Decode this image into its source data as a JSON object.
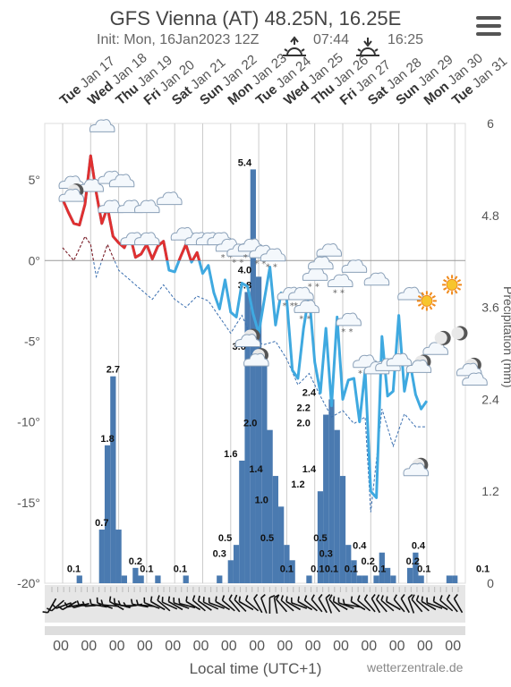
{
  "header": {
    "title": "GFS Vienna (AT) 48.25N, 16.25E",
    "subtitle": "Init: Mon, 16Jan2023 12Z",
    "sunrise": "07:44",
    "sunset": "16:25",
    "menu_icon": "hamburger-menu-icon"
  },
  "footer": {
    "xlabel": "Local time (UTC+1)",
    "credit": "wetterzentrale.de"
  },
  "right_axis_label": "Precipitation (mm)",
  "colors": {
    "temp_above": "#e03030",
    "temp_below": "#3fa9e0",
    "dewpoint_above": "#8b1a1a",
    "dewpoint_below": "#3a6fb0",
    "precip": "#4a7ab0",
    "grid": "#cccccc",
    "zero_line": "#999999"
  },
  "chart_data": {
    "type": "bar",
    "day_labels": [
      {
        "day": "Tue",
        "date": "Jan 17"
      },
      {
        "day": "Wed",
        "date": "Jan 18"
      },
      {
        "day": "Thu",
        "date": "Jan 19"
      },
      {
        "day": "Fri",
        "date": "Jan 20"
      },
      {
        "day": "Sat",
        "date": "Jan 21"
      },
      {
        "day": "Sun",
        "date": "Jan 22"
      },
      {
        "day": "Mon",
        "date": "Jan 23"
      },
      {
        "day": "Tue",
        "date": "Jan 24"
      },
      {
        "day": "Wed",
        "date": "Jan 25"
      },
      {
        "day": "Thu",
        "date": "Jan 26"
      },
      {
        "day": "Fri",
        "date": "Jan 27"
      },
      {
        "day": "Sat",
        "date": "Jan 28"
      },
      {
        "day": "Sun",
        "date": "Jan 29"
      },
      {
        "day": "Mon",
        "date": "Jan 30"
      },
      {
        "day": "Tue",
        "date": "Jan 31"
      }
    ],
    "hour_labels": [
      "00",
      "00",
      "00",
      "00",
      "00",
      "00",
      "00",
      "00",
      "00",
      "00",
      "00",
      "00",
      "00",
      "00",
      "00"
    ],
    "temp_axis": {
      "ticks": [
        "5°",
        "0°",
        "-5°",
        "-10°",
        "-15°",
        "-20°"
      ],
      "values": [
        5,
        0,
        -5,
        -10,
        -15,
        -20
      ],
      "ylim": [
        -20,
        8.5
      ]
    },
    "precip_axis": {
      "ticks": [
        "6",
        "4.8",
        "3.6",
        "2.4",
        "1.2",
        "0"
      ],
      "values": [
        6,
        4.8,
        3.6,
        2.4,
        1.2,
        0
      ],
      "ylim": [
        0,
        6
      ]
    },
    "temperature": [
      [
        0,
        3.8
      ],
      [
        0.2,
        3.0
      ],
      [
        0.4,
        2.3
      ],
      [
        0.6,
        2.2
      ],
      [
        0.8,
        3.5
      ],
      [
        1.0,
        6.5
      ],
      [
        1.2,
        4.2
      ],
      [
        1.4,
        2.3
      ],
      [
        1.6,
        3.3
      ],
      [
        1.8,
        1.5
      ],
      [
        2.0,
        1.1
      ],
      [
        2.2,
        0.8
      ],
      [
        2.4,
        1.6
      ],
      [
        2.6,
        0.2
      ],
      [
        2.8,
        0.4
      ],
      [
        3.0,
        1.0
      ],
      [
        3.2,
        0.1
      ],
      [
        3.4,
        0.9
      ],
      [
        3.6,
        1.2
      ],
      [
        3.8,
        -0.6
      ],
      [
        4.0,
        -0.7
      ],
      [
        4.2,
        0.2
      ],
      [
        4.4,
        1.0
      ],
      [
        4.6,
        -0.1
      ],
      [
        4.8,
        0.5
      ],
      [
        5.0,
        -0.8
      ],
      [
        5.2,
        -0.3
      ],
      [
        5.4,
        -2.0
      ],
      [
        5.6,
        -3.0
      ],
      [
        5.8,
        -1.2
      ],
      [
        6.0,
        -3.2
      ],
      [
        6.2,
        -3.5
      ],
      [
        6.4,
        -1.4
      ],
      [
        6.6,
        -1.6
      ],
      [
        6.8,
        -3.3
      ],
      [
        7.0,
        -4.5
      ],
      [
        7.2,
        -2.4
      ],
      [
        7.4,
        -0.4
      ],
      [
        7.6,
        -4.0
      ],
      [
        7.8,
        -2.0
      ],
      [
        8.0,
        -2.4
      ],
      [
        8.2,
        -6.8
      ],
      [
        8.4,
        -7.3
      ],
      [
        8.6,
        -4.2
      ],
      [
        8.8,
        -2.1
      ],
      [
        9.0,
        -6.3
      ],
      [
        9.2,
        -8.2
      ],
      [
        9.4,
        -4.2
      ],
      [
        9.6,
        -9.0
      ],
      [
        9.8,
        -3.5
      ],
      [
        10.0,
        -8.6
      ],
      [
        10.2,
        -7.4
      ],
      [
        10.4,
        -7.3
      ],
      [
        10.6,
        -10.0
      ],
      [
        10.8,
        -6.8
      ],
      [
        11.0,
        -14.3
      ],
      [
        11.2,
        -14.7
      ],
      [
        11.4,
        -4.7
      ],
      [
        11.6,
        -8.4
      ],
      [
        11.8,
        -8.1
      ],
      [
        12.0,
        -3.4
      ],
      [
        12.2,
        -8.1
      ],
      [
        12.4,
        -6.3
      ],
      [
        12.6,
        -8.3
      ],
      [
        12.8,
        -9.2
      ],
      [
        13.0,
        -8.7
      ]
    ],
    "dewpoint": [
      [
        0,
        0.8
      ],
      [
        0.4,
        0.0
      ],
      [
        0.8,
        1.5
      ],
      [
        1.0,
        1.0
      ],
      [
        1.2,
        -1.0
      ],
      [
        1.6,
        1.0
      ],
      [
        2.0,
        -0.6
      ],
      [
        2.4,
        -1.2
      ],
      [
        2.8,
        -1.8
      ],
      [
        3.2,
        -2.4
      ],
      [
        3.6,
        -1.5
      ],
      [
        4.0,
        -2.4
      ],
      [
        4.4,
        -2.9
      ],
      [
        4.8,
        -2.2
      ],
      [
        5.2,
        -2.5
      ],
      [
        5.6,
        -3.5
      ],
      [
        6.0,
        -4.5
      ],
      [
        6.4,
        -3.4
      ],
      [
        6.8,
        -5.0
      ],
      [
        7.2,
        -5.2
      ],
      [
        7.6,
        -5.0
      ],
      [
        8.0,
        -6.1
      ],
      [
        8.4,
        -7.7
      ],
      [
        8.8,
        -7.0
      ],
      [
        9.2,
        -8.4
      ],
      [
        9.6,
        -9.7
      ],
      [
        10.0,
        -9.3
      ],
      [
        10.4,
        -10.1
      ],
      [
        10.8,
        -9.7
      ],
      [
        11.0,
        -15.6
      ],
      [
        11.4,
        -9.2
      ],
      [
        11.8,
        -11.5
      ],
      [
        12.2,
        -9.5
      ],
      [
        12.6,
        -10.3
      ],
      [
        13.0,
        -10.3
      ]
    ],
    "precipitation": [
      [
        0,
        0
      ],
      [
        0.2,
        0
      ],
      [
        0.4,
        0
      ],
      [
        0.6,
        0.1
      ],
      [
        0.8,
        0
      ],
      [
        1.0,
        0
      ],
      [
        1.2,
        0
      ],
      [
        1.4,
        0.7
      ],
      [
        1.6,
        1.8
      ],
      [
        1.8,
        2.7
      ],
      [
        2.0,
        0.7
      ],
      [
        2.2,
        0.1
      ],
      [
        2.4,
        0
      ],
      [
        2.6,
        0.2
      ],
      [
        2.8,
        0.1
      ],
      [
        3.0,
        0
      ],
      [
        3.2,
        0
      ],
      [
        3.4,
        0.1
      ],
      [
        3.6,
        0
      ],
      [
        3.8,
        0
      ],
      [
        4.0,
        0
      ],
      [
        4.2,
        0
      ],
      [
        4.4,
        0.1
      ],
      [
        4.6,
        0
      ],
      [
        4.8,
        0
      ],
      [
        5.0,
        0
      ],
      [
        5.2,
        0
      ],
      [
        5.4,
        0
      ],
      [
        5.6,
        0.1
      ],
      [
        5.8,
        0
      ],
      [
        6.0,
        0.3
      ],
      [
        6.2,
        0.5
      ],
      [
        6.4,
        1.6
      ],
      [
        6.6,
        3.8
      ],
      [
        6.8,
        5.4
      ],
      [
        7.0,
        4.0
      ],
      [
        7.2,
        3.0
      ],
      [
        7.4,
        2.0
      ],
      [
        7.6,
        1.4
      ],
      [
        7.8,
        1.0
      ],
      [
        8.0,
        0.5
      ],
      [
        8.2,
        0.3
      ],
      [
        8.4,
        0
      ],
      [
        8.6,
        0
      ],
      [
        8.8,
        0.1
      ],
      [
        9.0,
        0
      ],
      [
        9.2,
        1.2
      ],
      [
        9.4,
        2.2
      ],
      [
        9.6,
        2.4
      ],
      [
        9.8,
        2.0
      ],
      [
        10.0,
        1.4
      ],
      [
        10.2,
        0.5
      ],
      [
        10.4,
        0.3
      ],
      [
        10.6,
        0.1
      ],
      [
        10.8,
        0.1
      ],
      [
        11.0,
        0
      ],
      [
        11.2,
        0.1
      ],
      [
        11.4,
        0.4
      ],
      [
        11.6,
        0.2
      ],
      [
        11.8,
        0.1
      ],
      [
        12.0,
        0
      ],
      [
        12.2,
        0
      ],
      [
        12.4,
        0.2
      ],
      [
        12.6,
        0.4
      ],
      [
        12.8,
        0.1
      ],
      [
        13.0,
        0
      ],
      [
        13.2,
        0
      ],
      [
        13.4,
        0
      ],
      [
        13.6,
        0
      ],
      [
        13.8,
        0.1
      ],
      [
        14.0,
        0.1
      ]
    ],
    "precip_labels": [
      {
        "x": 0.4,
        "v": "0.1"
      },
      {
        "x": 1.4,
        "v": "0.7"
      },
      {
        "x": 1.6,
        "v": "1.8"
      },
      {
        "x": 1.8,
        "v": "2.7"
      },
      {
        "x": 2.6,
        "v": "0.2"
      },
      {
        "x": 3.0,
        "v": "0.1"
      },
      {
        "x": 4.2,
        "v": "0.1"
      },
      {
        "x": 5.6,
        "v": "0.3"
      },
      {
        "x": 5.8,
        "v": "0.5"
      },
      {
        "x": 6.0,
        "v": "1.6"
      },
      {
        "x": 6.3,
        "v": "3.0"
      },
      {
        "x": 6.5,
        "v": "3.8"
      },
      {
        "x": 6.5,
        "v": "4.0"
      },
      {
        "x": 6.5,
        "v": "5.4"
      },
      {
        "x": 6.7,
        "v": "2.0"
      },
      {
        "x": 6.9,
        "v": "1.4"
      },
      {
        "x": 7.1,
        "v": "1.0"
      },
      {
        "x": 7.3,
        "v": "0.5"
      },
      {
        "x": 8.0,
        "v": "0.1"
      },
      {
        "x": 8.4,
        "v": "1.2"
      },
      {
        "x": 8.6,
        "v": "2.2"
      },
      {
        "x": 8.6,
        "v": "2.0"
      },
      {
        "x": 8.8,
        "v": "2.4"
      },
      {
        "x": 8.8,
        "v": "1.4"
      },
      {
        "x": 9.2,
        "v": "0.5"
      },
      {
        "x": 9.4,
        "v": "0.3"
      },
      {
        "x": 9.1,
        "v": "0.1"
      },
      {
        "x": 9.6,
        "v": "0.1"
      },
      {
        "x": 10.3,
        "v": "0.1"
      },
      {
        "x": 10.6,
        "v": "0.4"
      },
      {
        "x": 10.9,
        "v": "0.2"
      },
      {
        "x": 11.3,
        "v": "0.1"
      },
      {
        "x": 12.5,
        "v": "0.2"
      },
      {
        "x": 12.7,
        "v": "0.4"
      },
      {
        "x": 12.9,
        "v": "0.1"
      },
      {
        "x": 15.0,
        "v": "0.1"
      }
    ],
    "weather_icons": [
      {
        "x": 0.3,
        "t": 4.7,
        "icon": "cloud-icon"
      },
      {
        "x": 1.0,
        "t": 4.5,
        "icon": "cloud-icon"
      },
      {
        "x": 0.3,
        "t": 4.0,
        "icon": "moon-cloud-icon"
      },
      {
        "x": 1.4,
        "t": 8.2,
        "icon": "cloud-icon"
      },
      {
        "x": 1.7,
        "t": 5.0,
        "icon": "cloud-icon"
      },
      {
        "x": 2.1,
        "t": 4.8,
        "icon": "cloud-icon"
      },
      {
        "x": 1.7,
        "t": 3.2,
        "icon": "cloud-icon"
      },
      {
        "x": 2.4,
        "t": 3.2,
        "icon": "cloud-icon"
      },
      {
        "x": 3.0,
        "t": 3.2,
        "icon": "cloud-icon"
      },
      {
        "x": 3.8,
        "t": 3.7,
        "icon": "cloud-icon"
      },
      {
        "x": 2.5,
        "t": 1.2,
        "icon": "cloud-icon"
      },
      {
        "x": 3.0,
        "t": 1.2,
        "icon": "cloud-icon"
      },
      {
        "x": 4.3,
        "t": 1.5,
        "icon": "cloud-icon"
      },
      {
        "x": 4.8,
        "t": 1.2,
        "icon": "cloud-icon"
      },
      {
        "x": 5.2,
        "t": 1.2,
        "icon": "cloud-icon"
      },
      {
        "x": 5.6,
        "t": 1.2,
        "icon": "cloud-icon"
      },
      {
        "x": 5.9,
        "t": 0.8,
        "icon": "snow-cloud-icon"
      },
      {
        "x": 6.3,
        "t": 0.5,
        "icon": "snow-cloud-icon"
      },
      {
        "x": 6.7,
        "t": 0.8,
        "icon": "snow-cloud-icon"
      },
      {
        "x": 7.1,
        "t": 0.4,
        "icon": "snow-cloud-icon"
      },
      {
        "x": 7.5,
        "t": 0.2,
        "icon": "snow-cloud-icon"
      },
      {
        "x": 6.6,
        "t": -5.0,
        "icon": "moon-cloud-icon"
      },
      {
        "x": 6.9,
        "t": -6.2,
        "icon": "moon-cloud-icon"
      },
      {
        "x": 8.1,
        "t": -2.2,
        "icon": "snow-cloud-icon"
      },
      {
        "x": 8.5,
        "t": -2.2,
        "icon": "snow-cloud-icon"
      },
      {
        "x": 8.7,
        "t": -3.0,
        "icon": "snow-cloud-icon"
      },
      {
        "x": 9.0,
        "t": -1.0,
        "icon": "snow-cloud-icon"
      },
      {
        "x": 9.2,
        "t": -0.3,
        "icon": "cloud-icon"
      },
      {
        "x": 9.5,
        "t": 0.5,
        "icon": "cloud-icon"
      },
      {
        "x": 9.9,
        "t": -1.4,
        "icon": "snow-cloud-icon"
      },
      {
        "x": 10.4,
        "t": -0.5,
        "icon": "cloud-icon"
      },
      {
        "x": 10.2,
        "t": -3.8,
        "icon": "snow-cloud-icon"
      },
      {
        "x": 10.8,
        "t": -6.4,
        "icon": "snow-cloud-icon"
      },
      {
        "x": 11.2,
        "t": -6.8,
        "icon": "cloud-icon"
      },
      {
        "x": 11.6,
        "t": -6.6,
        "icon": "cloud-icon"
      },
      {
        "x": 12.0,
        "t": -6.3,
        "icon": "cloud-icon"
      },
      {
        "x": 11.2,
        "t": -1.3,
        "icon": "cloud-icon"
      },
      {
        "x": 12.4,
        "t": -2.2,
        "icon": "cloud-icon"
      },
      {
        "x": 12.7,
        "t": -6.6,
        "icon": "moon-cloud-icon"
      },
      {
        "x": 12.6,
        "t": -13.0,
        "icon": "moon-cloud-icon"
      },
      {
        "x": 13.0,
        "t": -2.5,
        "icon": "sun-icon"
      },
      {
        "x": 13.3,
        "t": -5.6,
        "icon": "cloud-icon"
      },
      {
        "x": 13.6,
        "t": -4.8,
        "icon": "moon-icon"
      },
      {
        "x": 13.9,
        "t": -1.5,
        "icon": "sun-icon"
      },
      {
        "x": 14.2,
        "t": -4.5,
        "icon": "moon-icon"
      },
      {
        "x": 14.5,
        "t": -6.8,
        "icon": "moon-cloud-icon"
      },
      {
        "x": 14.7,
        "t": -7.5,
        "icon": "cloud-icon"
      }
    ],
    "wind_barbs": [
      210,
      230,
      250,
      240,
      260,
      255,
      270,
      265,
      280,
      290,
      275,
      300,
      285,
      270,
      260,
      280,
      275,
      290,
      300,
      310,
      295,
      300,
      290,
      285,
      300,
      310,
      305,
      295,
      290,
      300,
      310,
      320,
      315,
      300,
      310,
      330,
      340,
      0,
      350,
      320,
      310,
      300,
      290,
      300,
      310,
      320,
      330,
      340,
      320,
      300,
      290,
      280,
      300,
      310,
      320,
      330,
      320,
      310,
      300,
      320,
      330,
      340,
      320,
      310,
      300,
      290,
      300,
      310,
      320,
      330
    ]
  }
}
